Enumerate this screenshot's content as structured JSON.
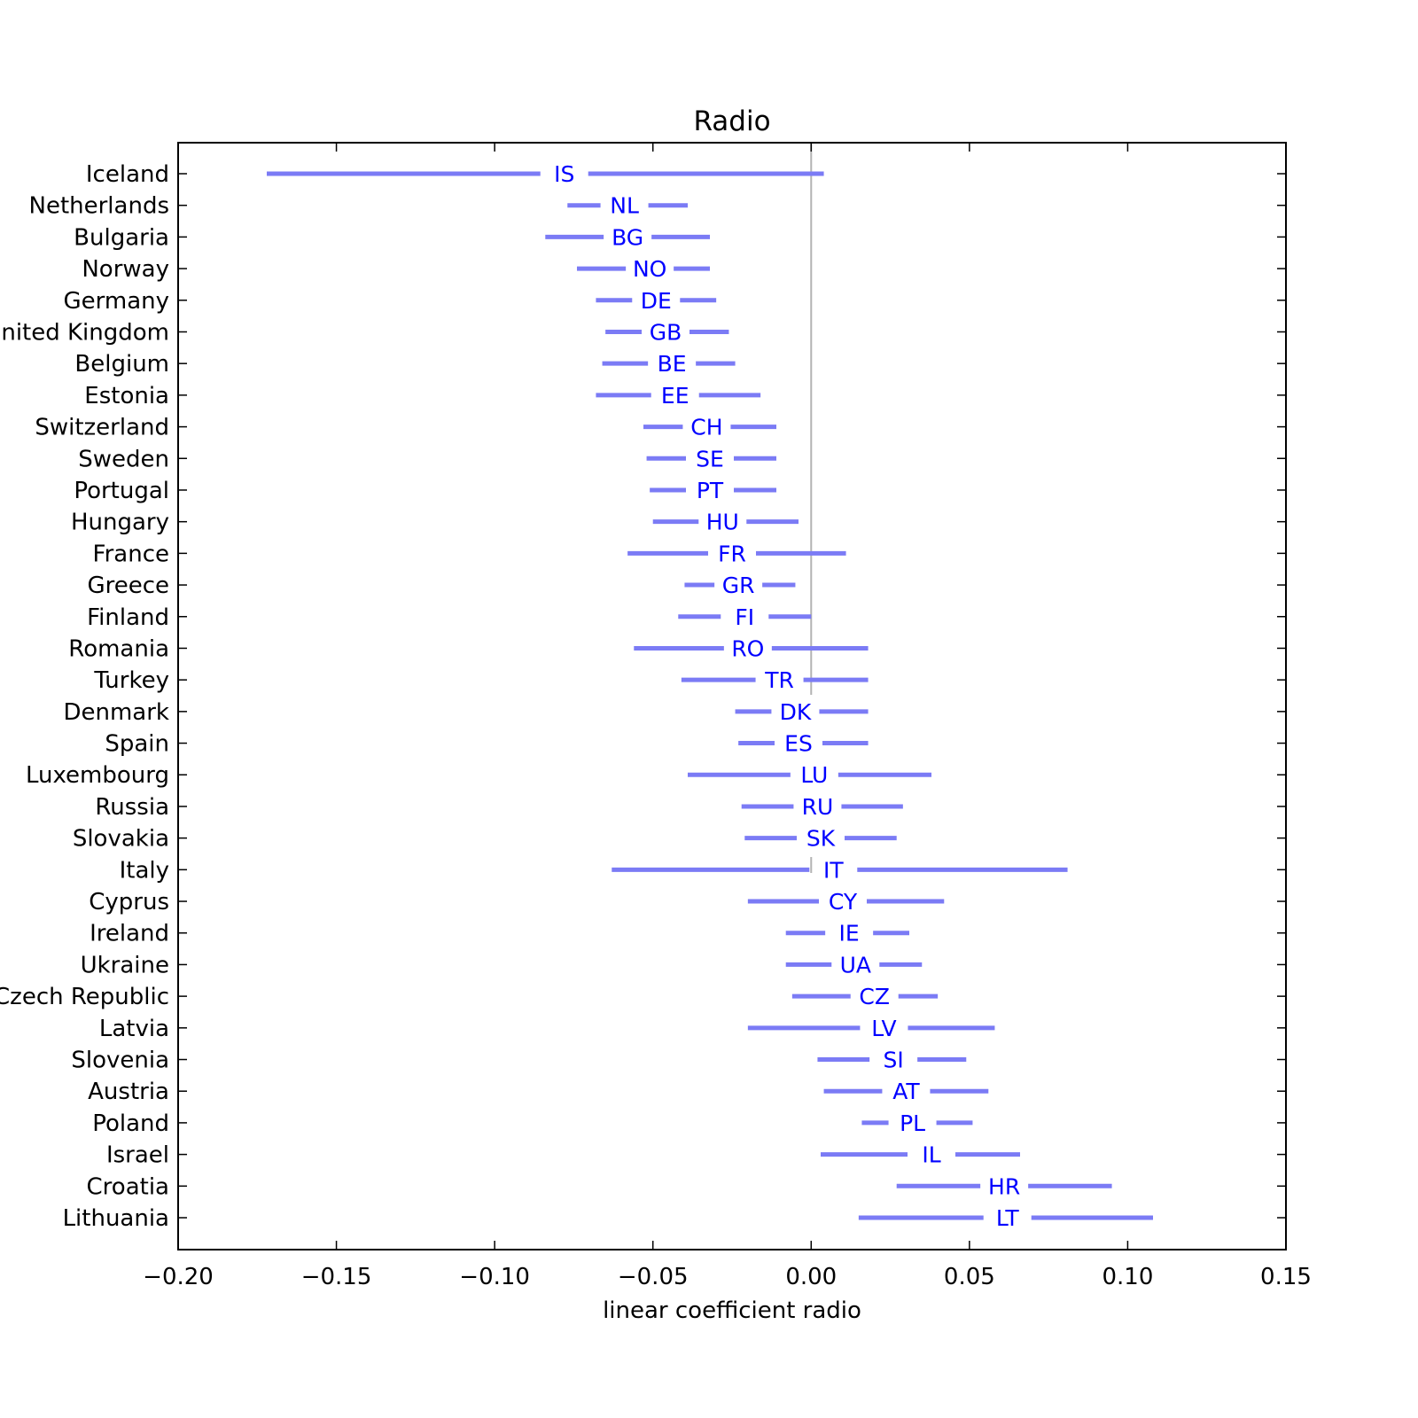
{
  "chart_data": {
    "type": "interval",
    "title": "Radio",
    "xlabel": "linear coefficient radio",
    "ylabel": "",
    "xlim": [
      -0.2,
      0.15
    ],
    "xticks": [
      -0.2,
      -0.15,
      -0.1,
      -0.05,
      0.0,
      0.05,
      0.1,
      0.15
    ],
    "xtick_labels": [
      "−0.20",
      "−0.15",
      "−0.10",
      "−0.05",
      "0.00",
      "0.05",
      "0.10",
      "0.15"
    ],
    "reference_line_x": 0.0,
    "grid": false,
    "legend": "none",
    "colors": {
      "interval": "#7b7bf5",
      "code_label": "#0000ff",
      "reference_line": "#b3b3b3",
      "axes": "#000000"
    },
    "series": [
      {
        "country": "Iceland",
        "code": "IS",
        "low": -0.172,
        "high": 0.004,
        "estimate": -0.078
      },
      {
        "country": "Netherlands",
        "code": "NL",
        "low": -0.077,
        "high": -0.039,
        "estimate": -0.059
      },
      {
        "country": "Bulgaria",
        "code": "BG",
        "low": -0.084,
        "high": -0.032,
        "estimate": -0.058
      },
      {
        "country": "Norway",
        "code": "NO",
        "low": -0.074,
        "high": -0.032,
        "estimate": -0.051
      },
      {
        "country": "Germany",
        "code": "DE",
        "low": -0.068,
        "high": -0.03,
        "estimate": -0.049
      },
      {
        "country": "United Kingdom",
        "code": "GB",
        "low": -0.065,
        "high": -0.026,
        "estimate": -0.046
      },
      {
        "country": "Belgium",
        "code": "BE",
        "low": -0.066,
        "high": -0.024,
        "estimate": -0.044
      },
      {
        "country": "Estonia",
        "code": "EE",
        "low": -0.068,
        "high": -0.016,
        "estimate": -0.043
      },
      {
        "country": "Switzerland",
        "code": "CH",
        "low": -0.053,
        "high": -0.011,
        "estimate": -0.033
      },
      {
        "country": "Sweden",
        "code": "SE",
        "low": -0.052,
        "high": -0.011,
        "estimate": -0.032
      },
      {
        "country": "Portugal",
        "code": "PT",
        "low": -0.051,
        "high": -0.011,
        "estimate": -0.032
      },
      {
        "country": "Hungary",
        "code": "HU",
        "low": -0.05,
        "high": -0.004,
        "estimate": -0.028
      },
      {
        "country": "France",
        "code": "FR",
        "low": -0.058,
        "high": 0.011,
        "estimate": -0.025
      },
      {
        "country": "Greece",
        "code": "GR",
        "low": -0.04,
        "high": -0.005,
        "estimate": -0.023
      },
      {
        "country": "Finland",
        "code": "FI",
        "low": -0.042,
        "high": 0.0,
        "estimate": -0.021
      },
      {
        "country": "Romania",
        "code": "RO",
        "low": -0.056,
        "high": 0.018,
        "estimate": -0.02
      },
      {
        "country": "Turkey",
        "code": "TR",
        "low": -0.041,
        "high": 0.018,
        "estimate": -0.01
      },
      {
        "country": "Denmark",
        "code": "DK",
        "low": -0.024,
        "high": 0.018,
        "estimate": -0.005
      },
      {
        "country": "Spain",
        "code": "ES",
        "low": -0.023,
        "high": 0.018,
        "estimate": -0.004
      },
      {
        "country": "Luxembourg",
        "code": "LU",
        "low": -0.039,
        "high": 0.038,
        "estimate": 0.001
      },
      {
        "country": "Russia",
        "code": "RU",
        "low": -0.022,
        "high": 0.029,
        "estimate": 0.002
      },
      {
        "country": "Slovakia",
        "code": "SK",
        "low": -0.021,
        "high": 0.027,
        "estimate": 0.003
      },
      {
        "country": "Italy",
        "code": "IT",
        "low": -0.063,
        "high": 0.081,
        "estimate": 0.007
      },
      {
        "country": "Cyprus",
        "code": "CY",
        "low": -0.02,
        "high": 0.042,
        "estimate": 0.01
      },
      {
        "country": "Ireland",
        "code": "IE",
        "low": -0.008,
        "high": 0.031,
        "estimate": 0.012
      },
      {
        "country": "Ukraine",
        "code": "UA",
        "low": -0.008,
        "high": 0.035,
        "estimate": 0.014
      },
      {
        "country": "Czech Republic",
        "code": "CZ",
        "low": -0.006,
        "high": 0.04,
        "estimate": 0.02
      },
      {
        "country": "Latvia",
        "code": "LV",
        "low": -0.02,
        "high": 0.058,
        "estimate": 0.023
      },
      {
        "country": "Slovenia",
        "code": "SI",
        "low": 0.002,
        "high": 0.049,
        "estimate": 0.026
      },
      {
        "country": "Austria",
        "code": "AT",
        "low": 0.004,
        "high": 0.056,
        "estimate": 0.03
      },
      {
        "country": "Poland",
        "code": "PL",
        "low": 0.016,
        "high": 0.051,
        "estimate": 0.032
      },
      {
        "country": "Israel",
        "code": "IL",
        "low": 0.003,
        "high": 0.066,
        "estimate": 0.038
      },
      {
        "country": "Croatia",
        "code": "HR",
        "low": 0.027,
        "high": 0.095,
        "estimate": 0.061
      },
      {
        "country": "Lithuania",
        "code": "LT",
        "low": 0.015,
        "high": 0.108,
        "estimate": 0.062
      }
    ]
  }
}
